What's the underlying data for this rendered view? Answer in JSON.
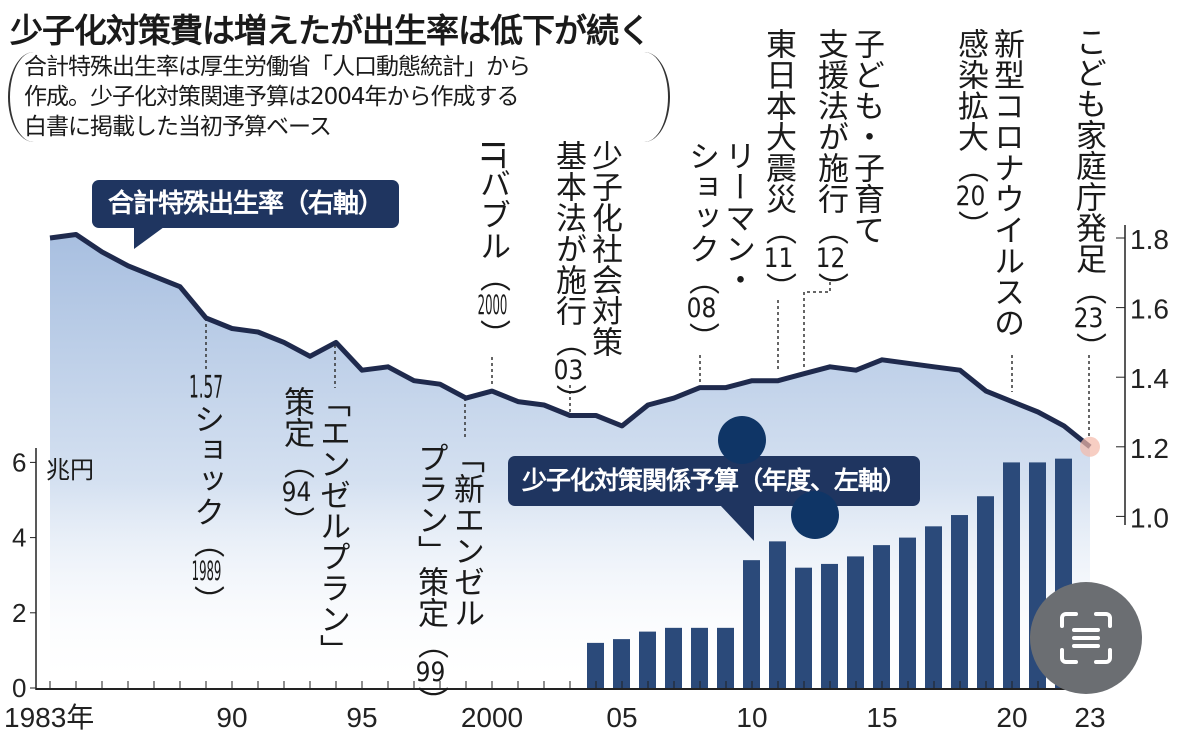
{
  "title": "少子化対策費は増えたが出生率は低下が続く",
  "note": [
    "合計特殊出生率は厚生労働省「人口動態統計」から",
    "作成。少子化対策関連予算は2004年から作成する",
    "白書に掲載した当初予算ベース"
  ],
  "legend": {
    "tfr_label": "合計特殊出生率（右軸）",
    "budget_label": "少子化対策関係予算（年度、左軸）",
    "left_unit": "兆円"
  },
  "annotations": [
    {
      "lines": [
        "1.57ショック（"
      ],
      "year": "1989",
      "close": "）"
    },
    {
      "lines": [
        "「エンゼルプラン」",
        "策定（"
      ],
      "year": "94",
      "close": "）"
    },
    {
      "lines": [
        "「新エンゼル",
        "プラン」策定（"
      ],
      "year": "99",
      "close": "）"
    },
    {
      "lines": [
        "ITバブル（"
      ],
      "year": "2000",
      "close": "）"
    },
    {
      "lines": [
        "少子化社会対策",
        "基本法が施行（"
      ],
      "year": "03",
      "close": "）"
    },
    {
      "lines": [
        "リーマン・",
        "ショック（"
      ],
      "year": "08",
      "close": "）"
    },
    {
      "lines": [
        "東日本大震災（"
      ],
      "year": "11",
      "close": "）"
    },
    {
      "lines": [
        "子ども・子育て",
        "支援法が施行（"
      ],
      "year": "12",
      "close": "）"
    },
    {
      "lines": [
        "新型コロナウイルスの",
        "感染拡大（"
      ],
      "year": "20",
      "close": "）"
    },
    {
      "lines": [
        "こども家庭庁発足（"
      ],
      "year": "23",
      "close": "）"
    }
  ],
  "colors": {
    "line": "#1f2a4d",
    "bar": "#2b4a7a",
    "area_top": "#a8bfe0",
    "callout": "#1f3560"
  },
  "chart_data": {
    "type": "bar+line",
    "title": "少子化対策費は増えたが出生率は低下が続く",
    "x_tick_labels": [
      {
        "year": 1983,
        "label": "1983年"
      },
      {
        "year": 1990,
        "label": "90"
      },
      {
        "year": 1995,
        "label": "95"
      },
      {
        "year": 2000,
        "label": "2000"
      },
      {
        "year": 2005,
        "label": "05"
      },
      {
        "year": 2010,
        "label": "10"
      },
      {
        "year": 2015,
        "label": "15"
      },
      {
        "year": 2020,
        "label": "20"
      },
      {
        "year": 2023,
        "label": "23"
      }
    ],
    "xlim": [
      1983,
      2023
    ],
    "left_axis": {
      "label": "兆円",
      "ylim": [
        0,
        6
      ],
      "ticks": [
        "0",
        "2",
        "4",
        "6"
      ]
    },
    "right_axis": {
      "ylim": [
        1.0,
        1.8
      ],
      "ticks": [
        "1.0",
        "1.2",
        "1.4",
        "1.6",
        "1.8"
      ]
    },
    "series": [
      {
        "name": "合計特殊出生率（右軸）",
        "type": "line",
        "axis": "right",
        "x": [
          1983,
          1984,
          1985,
          1986,
          1987,
          1988,
          1989,
          1990,
          1991,
          1992,
          1993,
          1994,
          1995,
          1996,
          1997,
          1998,
          1999,
          2000,
          2001,
          2002,
          2003,
          2004,
          2005,
          2006,
          2007,
          2008,
          2009,
          2010,
          2011,
          2012,
          2013,
          2014,
          2015,
          2016,
          2017,
          2018,
          2019,
          2020,
          2021,
          2022,
          2023
        ],
        "values": [
          1.8,
          1.81,
          1.76,
          1.72,
          1.69,
          1.66,
          1.57,
          1.54,
          1.53,
          1.5,
          1.46,
          1.5,
          1.42,
          1.43,
          1.39,
          1.38,
          1.34,
          1.36,
          1.33,
          1.32,
          1.29,
          1.29,
          1.26,
          1.32,
          1.34,
          1.37,
          1.37,
          1.39,
          1.39,
          1.41,
          1.43,
          1.42,
          1.45,
          1.44,
          1.43,
          1.42,
          1.36,
          1.33,
          1.3,
          1.26,
          1.2
        ]
      },
      {
        "name": "少子化対策関係予算（年度、左軸）",
        "type": "bar",
        "axis": "left",
        "x": [
          2004,
          2005,
          2006,
          2007,
          2008,
          2009,
          2010,
          2011,
          2012,
          2013,
          2014,
          2015,
          2016,
          2017,
          2018,
          2019,
          2020,
          2021,
          2022
        ],
        "values": [
          1.2,
          1.3,
          1.5,
          1.6,
          1.6,
          1.6,
          3.4,
          3.9,
          3.2,
          3.3,
          3.5,
          3.8,
          4.0,
          4.3,
          4.6,
          5.1,
          6.0,
          6.0,
          6.1
        ]
      }
    ]
  }
}
